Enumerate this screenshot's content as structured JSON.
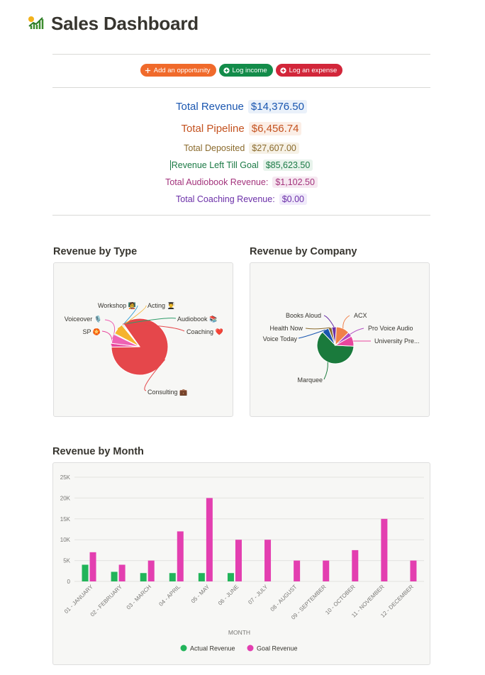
{
  "page": {
    "title": "Sales Dashboard",
    "icon": "chart-up-icon"
  },
  "actions": [
    {
      "label": "Add an opportunity",
      "icon": "plus-icon",
      "color": "#f06a2b"
    },
    {
      "label": "Log income",
      "icon": "plus-circle-icon",
      "color": "#138c4a"
    },
    {
      "label": "Log an expense",
      "icon": "plus-circle-icon",
      "color": "#d2263a"
    }
  ],
  "stats": {
    "total_revenue": {
      "label": "Total Revenue",
      "value": "$14,376.50",
      "color": "#1a56b0",
      "bg": "#eaf1fa"
    },
    "total_pipeline": {
      "label": "Total Pipeline",
      "value": "$6,456.74",
      "color": "#c4521f",
      "bg": "#fbeee6"
    },
    "total_deposited": {
      "label": "Total Deposited",
      "value": "$27,607.00",
      "color": "#8a6a2c",
      "bg": "#f6f1e6"
    },
    "revenue_left": {
      "label": "Revenue Left Till Goal",
      "value": "$85,623.50",
      "color": "#1b7a45",
      "bg": "#e8f3ec"
    },
    "audiobook": {
      "label": "Total Audiobook Revenue:",
      "value": "$1,102.50",
      "color": "#a3337c",
      "bg": "#f6e8f1"
    },
    "coaching": {
      "label": "Total Coaching Revenue:",
      "value": "$0.00",
      "color": "#6b2fa8",
      "bg": "#f0eafa"
    }
  },
  "sections": {
    "by_type": "Revenue by Type",
    "by_company": "Revenue by Company",
    "by_month": "Revenue by Month"
  },
  "chart_data": [
    {
      "type": "pie",
      "title": "Revenue by Type",
      "slices": [
        {
          "label": "Consulting 💼",
          "value": 80,
          "color": "#e5474b"
        },
        {
          "label": "SP 🏵️",
          "value": 2,
          "color": "#e8469d"
        },
        {
          "label": "Voiceover 🎙️",
          "value": 5,
          "color": "#ee62b3"
        },
        {
          "label": "Workshop 🧑‍🏫",
          "value": 0.5,
          "color": "#3aa2d6"
        },
        {
          "label": "Acting 👨‍🎓",
          "value": 6,
          "color": "#f5b32f"
        },
        {
          "label": "Audiobook 📚",
          "value": 0.5,
          "color": "#2f9c6a"
        },
        {
          "label": "Coaching ❤️",
          "value": 0.5,
          "color": "#e5474b"
        }
      ]
    },
    {
      "type": "pie",
      "title": "Revenue by Company",
      "slices": [
        {
          "label": "Marquee",
          "value": 62,
          "color": "#1a7a3c"
        },
        {
          "label": "Voice Today",
          "value": 6,
          "color": "#1a56b0"
        },
        {
          "label": "Health Now",
          "value": 3,
          "color": "#8a6a2c"
        },
        {
          "label": "Books Aloud",
          "value": 4,
          "color": "#6b2fa8"
        },
        {
          "label": "ACX",
          "value": 12,
          "color": "#f0804a"
        },
        {
          "label": "Pro Voice Audio",
          "value": 4,
          "color": "#b04ac2"
        },
        {
          "label": "University Pre...",
          "value": 9,
          "color": "#e8469d"
        }
      ]
    },
    {
      "type": "bar",
      "title": "Revenue by Month",
      "categories": [
        "01 - JANUARY",
        "02 - FEBRUARY",
        "03 - MARCH",
        "04 - APRIL",
        "05 - MAY",
        "06 - JUNE",
        "07 - JULY",
        "08 - AUGUST",
        "09 - SEPTEMBER",
        "10 - OCTOBER",
        "11 - NOVEMBER",
        "12 - DECEMBER"
      ],
      "series": [
        {
          "name": "Actual Revenue",
          "color": "#22b45a",
          "values": [
            4000,
            2300,
            2000,
            2000,
            2000,
            2000,
            0,
            0,
            0,
            0,
            0,
            0
          ]
        },
        {
          "name": "Goal Revenue",
          "color": "#e33fb0",
          "values": [
            7000,
            4000,
            5000,
            12000,
            20000,
            10000,
            10000,
            5000,
            5000,
            7500,
            15000,
            5000
          ]
        }
      ],
      "xlabel": "MONTH",
      "ylabel": "",
      "ylim": [
        0,
        25000
      ],
      "yticks": [
        "0",
        "5K",
        "10K",
        "15K",
        "20K",
        "25K"
      ],
      "grid": true,
      "legend": "bottom"
    }
  ]
}
